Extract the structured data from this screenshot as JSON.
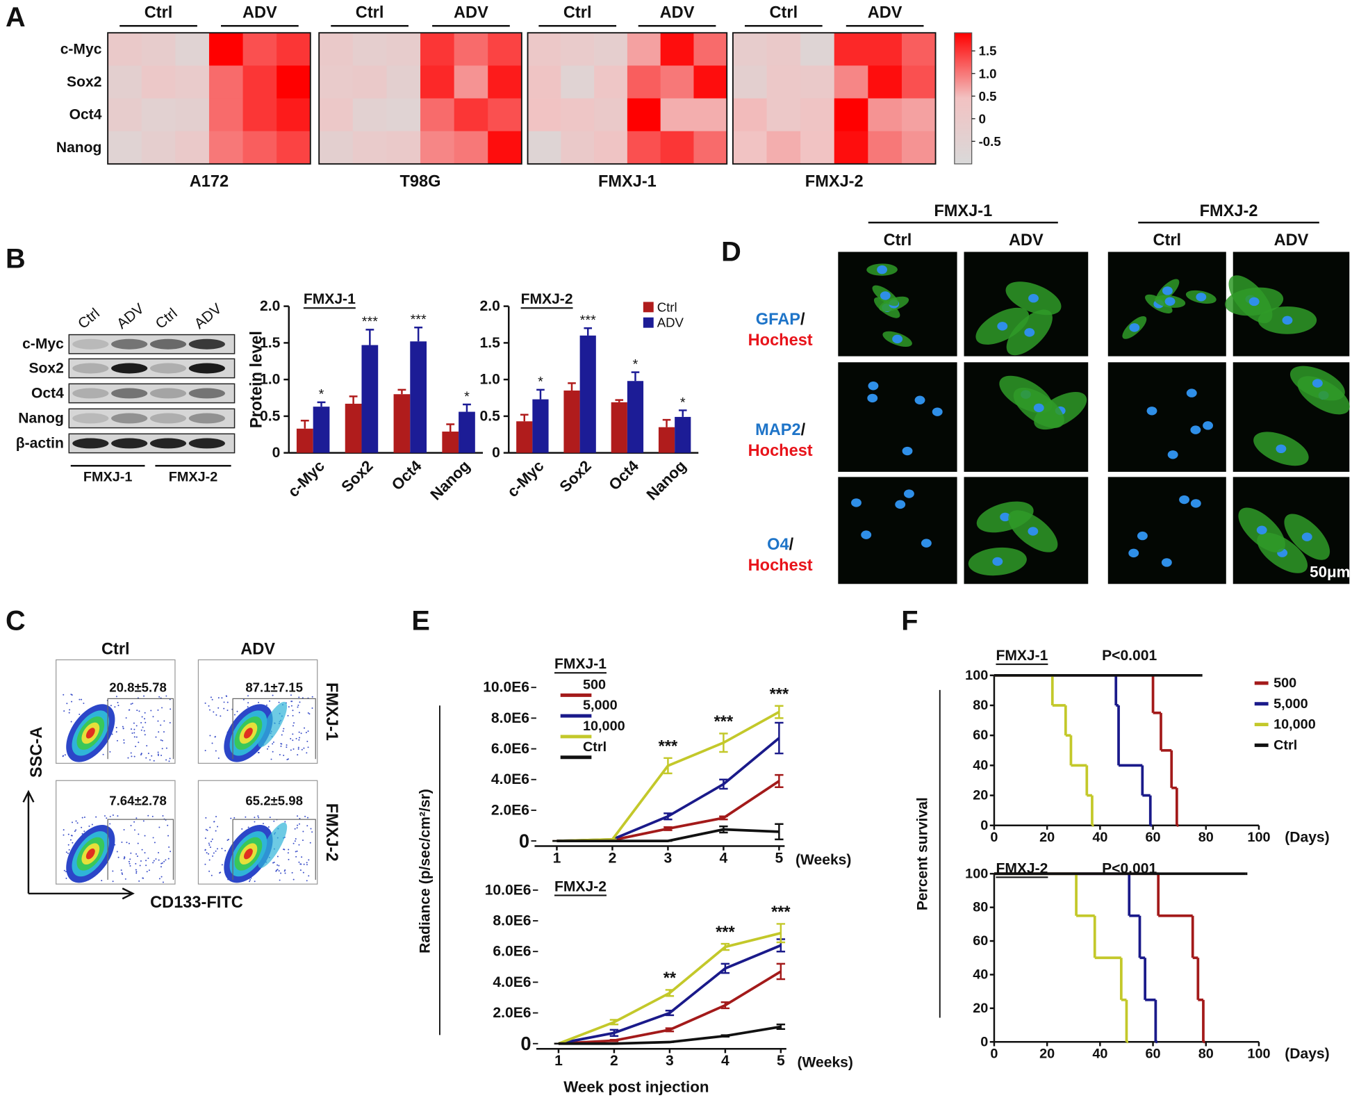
{
  "panel_labels": [
    "A",
    "B",
    "C",
    "D",
    "E",
    "F"
  ],
  "chart_data": [
    {
      "type": "heatmap",
      "rows": [
        "c-Myc",
        "Sox2",
        "Oct4",
        "Nanog"
      ],
      "groups": [
        "Ctrl",
        "ADV"
      ],
      "panels": [
        {
          "title": "A172",
          "values": [
            [
              0.0,
              -0.2,
              -0.6,
              1.9,
              1.3,
              1.5
            ],
            [
              -0.4,
              0.1,
              -0.1,
              1.1,
              1.5,
              1.9
            ],
            [
              -0.2,
              -0.5,
              -0.4,
              1.1,
              1.5,
              1.7
            ],
            [
              -0.6,
              -0.3,
              0.0,
              1.0,
              1.2,
              1.4
            ]
          ]
        },
        {
          "title": "T98G",
          "values": [
            [
              0.0,
              -0.3,
              -0.2,
              1.5,
              1.1,
              1.4
            ],
            [
              -0.1,
              0.0,
              -0.4,
              1.6,
              0.8,
              1.7
            ],
            [
              0.1,
              -0.5,
              -0.6,
              1.1,
              1.5,
              1.3
            ],
            [
              -0.4,
              -0.1,
              0.0,
              0.9,
              1.0,
              1.8
            ]
          ]
        },
        {
          "title": "FMXJ-1",
          "values": [
            [
              0.1,
              -0.1,
              -0.3,
              0.7,
              1.8,
              1.1
            ],
            [
              0.3,
              -0.6,
              0.2,
              1.2,
              1.0,
              1.8
            ],
            [
              0.4,
              0.2,
              0.0,
              1.9,
              0.6,
              0.6
            ],
            [
              -0.7,
              0.0,
              0.3,
              1.3,
              1.5,
              1.1
            ]
          ]
        },
        {
          "title": "FMXJ-2",
          "values": [
            [
              -0.2,
              0.0,
              -0.7,
              1.6,
              1.6,
              1.2
            ],
            [
              -0.4,
              0.1,
              0.0,
              0.9,
              1.8,
              1.3
            ],
            [
              0.5,
              0.1,
              0.3,
              1.9,
              0.8,
              0.7
            ],
            [
              0.4,
              0.6,
              0.4,
              1.8,
              1.0,
              0.8
            ]
          ]
        }
      ],
      "zlim": [
        -1,
        1.9
      ],
      "zticks": [
        1.5,
        {
          "value": 1,
          "label": "1.0"
        },
        0.5,
        0,
        -0.5
      ],
      "colors": [
        "#d9d9d9",
        "#f2c2c2",
        "#ff0000"
      ]
    },
    {
      "type": "bar",
      "title": "FMXJ-1",
      "ylabel": "Protein level",
      "categories": [
        "c-Myc",
        "Sox2",
        "Oct4",
        "Nanog"
      ],
      "series": [
        {
          "name": "Ctrl",
          "color": "#b01c1c",
          "values": [
            0.33,
            0.67,
            0.8,
            0.29
          ],
          "errors": [
            0.11,
            0.1,
            0.06,
            0.1
          ]
        },
        {
          "name": "ADV",
          "color": "#1c1c96",
          "values": [
            0.63,
            1.47,
            1.52,
            0.56
          ],
          "errors": [
            0.06,
            0.21,
            0.19,
            0.1
          ]
        }
      ],
      "significance": [
        "*",
        "***",
        "***",
        "*"
      ],
      "ylim": [
        0,
        2
      ],
      "yticks": [
        0,
        0.5,
        {
          "value": 1,
          "label": "1.0"
        },
        1.5,
        {
          "value": 2,
          "label": "2.0"
        }
      ]
    },
    {
      "type": "bar",
      "title": "FMXJ-2",
      "categories": [
        "c-Myc",
        "Sox2",
        "Oct4",
        "Nanog"
      ],
      "series": [
        {
          "name": "Ctrl",
          "color": "#b01c1c",
          "values": [
            0.43,
            0.85,
            0.69,
            0.35
          ],
          "errors": [
            0.09,
            0.1,
            0.03,
            0.1
          ]
        },
        {
          "name": "ADV",
          "color": "#1c1c96",
          "values": [
            0.73,
            1.6,
            0.98,
            0.49
          ],
          "errors": [
            0.13,
            0.1,
            0.12,
            0.09
          ]
        }
      ],
      "significance": [
        "*",
        "***",
        "*",
        "*"
      ],
      "ylim": [
        0,
        2
      ],
      "yticks": [
        0,
        0.5,
        {
          "value": 1,
          "label": "1.0"
        },
        1.5,
        {
          "value": 2,
          "label": "2.0"
        }
      ],
      "legend": true
    },
    {
      "type": "line",
      "title": "FMXJ-1",
      "ylabel": "Radiance (p/sec/cm²/sr)",
      "xlabel": "(Weeks)",
      "x": [
        1,
        2,
        3,
        4,
        5
      ],
      "xlim": [
        0.6,
        5.1
      ],
      "xticks": [
        1,
        2,
        3,
        4,
        5
      ],
      "ylim": [
        0,
        10000000
      ],
      "yticks": [
        0,
        {
          "value": 2000000,
          "label": "2.0E6"
        },
        {
          "value": 4000000,
          "label": "4.0E6"
        },
        {
          "value": 6000000,
          "label": "6.0E6"
        },
        {
          "value": 8000000,
          "label": "8.0E6"
        },
        {
          "value": 10000000,
          "label": "10.0E6"
        }
      ],
      "series": [
        {
          "name": "500",
          "color": "#a31a1a",
          "values": [
            0,
            50000,
            800000,
            1500000,
            3900000
          ],
          "errors": [
            0,
            0,
            100000,
            100000,
            400000
          ]
        },
        {
          "name": "5,000",
          "color": "#1a1a8a",
          "values": [
            0,
            100000,
            1600000,
            3700000,
            6700000
          ],
          "errors": [
            0,
            0,
            200000,
            300000,
            1000000
          ]
        },
        {
          "name": "10,000",
          "color": "#c3c82a",
          "values": [
            0,
            100000,
            4900000,
            6400000,
            8400000
          ],
          "errors": [
            0,
            0,
            500000,
            600000,
            400000
          ]
        },
        {
          "name": "Ctrl",
          "color": "#111111",
          "values": [
            0,
            0,
            0,
            750000,
            600000
          ],
          "errors": [
            0,
            0,
            0,
            200000,
            500000
          ]
        }
      ],
      "significance": [
        null,
        null,
        "***",
        "***",
        "***"
      ],
      "legend": true
    },
    {
      "type": "line",
      "title": "FMXJ-2",
      "xlabel": "(Weeks)",
      "xtitle": "Week post injection",
      "x": [
        1,
        2,
        3,
        4,
        5
      ],
      "xlim": [
        0.6,
        5.1
      ],
      "xticks": [
        1,
        2,
        3,
        4,
        5
      ],
      "ylim": [
        0,
        10000000
      ],
      "yticks": [
        0,
        {
          "value": 2000000,
          "label": "2.0E6"
        },
        {
          "value": 4000000,
          "label": "4.0E6"
        },
        {
          "value": 6000000,
          "label": "6.0E6"
        },
        {
          "value": 8000000,
          "label": "8.0E6"
        },
        {
          "value": 10000000,
          "label": "10.0E6"
        }
      ],
      "series": [
        {
          "name": "500",
          "color": "#a31a1a",
          "values": [
            0,
            200000,
            900000,
            2500000,
            4700000
          ],
          "errors": [
            0,
            50000,
            100000,
            200000,
            500000
          ]
        },
        {
          "name": "5,000",
          "color": "#1a1a8a",
          "values": [
            0,
            700000,
            2000000,
            4900000,
            6400000
          ],
          "errors": [
            0,
            200000,
            150000,
            300000,
            400000
          ]
        },
        {
          "name": "10,000",
          "color": "#c3c82a",
          "values": [
            0,
            1400000,
            3300000,
            6300000,
            7200000
          ],
          "errors": [
            0,
            150000,
            200000,
            200000,
            600000
          ]
        },
        {
          "name": "Ctrl",
          "color": "#111111",
          "values": [
            0,
            0,
            100000,
            500000,
            1100000
          ],
          "errors": [
            0,
            0,
            0,
            50000,
            150000
          ]
        }
      ],
      "significance": [
        null,
        null,
        "**",
        "***",
        "***"
      ]
    },
    {
      "type": "step",
      "title": "FMXJ-1",
      "annotation": "P<0.001",
      "ylabel": "Percent survival",
      "xlabel": "(Days)",
      "xlim": [
        0,
        100
      ],
      "xticks": [
        0,
        20,
        40,
        60,
        80,
        100
      ],
      "ylim": [
        0,
        100
      ],
      "yticks": [
        0,
        20,
        40,
        60,
        80,
        100
      ],
      "series": [
        {
          "name": "500",
          "color": "#a31a1a",
          "x": [
            0,
            60,
            63,
            67,
            69
          ],
          "values": [
            100,
            75,
            50,
            25,
            0
          ]
        },
        {
          "name": "5,000",
          "color": "#1a1a8a",
          "x": [
            0,
            46,
            47,
            56,
            59
          ],
          "values": [
            100,
            80,
            40,
            20,
            0
          ]
        },
        {
          "name": "10,000",
          "color": "#c3c82a",
          "x": [
            0,
            22,
            27,
            29,
            35,
            37
          ],
          "values": [
            100,
            80,
            60,
            40,
            20,
            0
          ]
        },
        {
          "name": "Ctrl",
          "color": "#111111",
          "x": [
            0,
            78
          ],
          "values": [
            100,
            100
          ]
        }
      ],
      "legend": true
    },
    {
      "type": "step",
      "title": "FMXJ-2",
      "annotation": "P<0.001",
      "xlabel": "(Days)",
      "xlim": [
        0,
        100
      ],
      "xticks": [
        0,
        20,
        40,
        60,
        80,
        100
      ],
      "ylim": [
        0,
        100
      ],
      "yticks": [
        0,
        20,
        40,
        60,
        80,
        100
      ],
      "series": [
        {
          "name": "500",
          "color": "#a31a1a",
          "x": [
            0,
            62,
            75,
            77,
            79
          ],
          "values": [
            100,
            75,
            50,
            25,
            0
          ]
        },
        {
          "name": "5,000",
          "color": "#1a1a8a",
          "x": [
            0,
            51,
            55,
            57,
            61
          ],
          "values": [
            100,
            75,
            50,
            25,
            0
          ]
        },
        {
          "name": "10,000",
          "color": "#c3c82a",
          "x": [
            0,
            31,
            38,
            48,
            50
          ],
          "values": [
            100,
            75,
            50,
            25,
            0
          ]
        },
        {
          "name": "Ctrl",
          "color": "#111111",
          "x": [
            0,
            95
          ],
          "values": [
            100,
            100
          ]
        }
      ]
    }
  ],
  "blot": {
    "lanes": [
      "Ctrl",
      "ADV",
      "Ctrl",
      "ADV"
    ],
    "proteins": [
      "c-Myc",
      "Sox2",
      "Oct4",
      "Nanog",
      "β-actin"
    ],
    "groups": [
      "FMXJ-1",
      "FMXJ-2"
    ]
  },
  "flow": {
    "columns": [
      "Ctrl",
      "ADV"
    ],
    "rows": [
      "FMXJ-1",
      "FMXJ-2"
    ],
    "gates": [
      [
        "20.8±5.78",
        "87.1±7.15"
      ],
      [
        "7.64±2.78",
        "65.2±5.98"
      ]
    ],
    "ylabel": "SSC-A",
    "xlabel": "CD133-FITC"
  },
  "staining": {
    "groups": [
      "FMXJ-1",
      "FMXJ-2"
    ],
    "columns": [
      "Ctrl",
      "ADV"
    ],
    "rows": [
      {
        "marker": "GFAP",
        "separator": "/",
        "counterstain": "Hochest"
      },
      {
        "marker": "MAP2",
        "separator": "/",
        "counterstain": "Hochest"
      },
      {
        "marker": "O4",
        "separator": "/",
        "counterstain": "Hochest"
      }
    ],
    "scale_bar": "50μm"
  }
}
